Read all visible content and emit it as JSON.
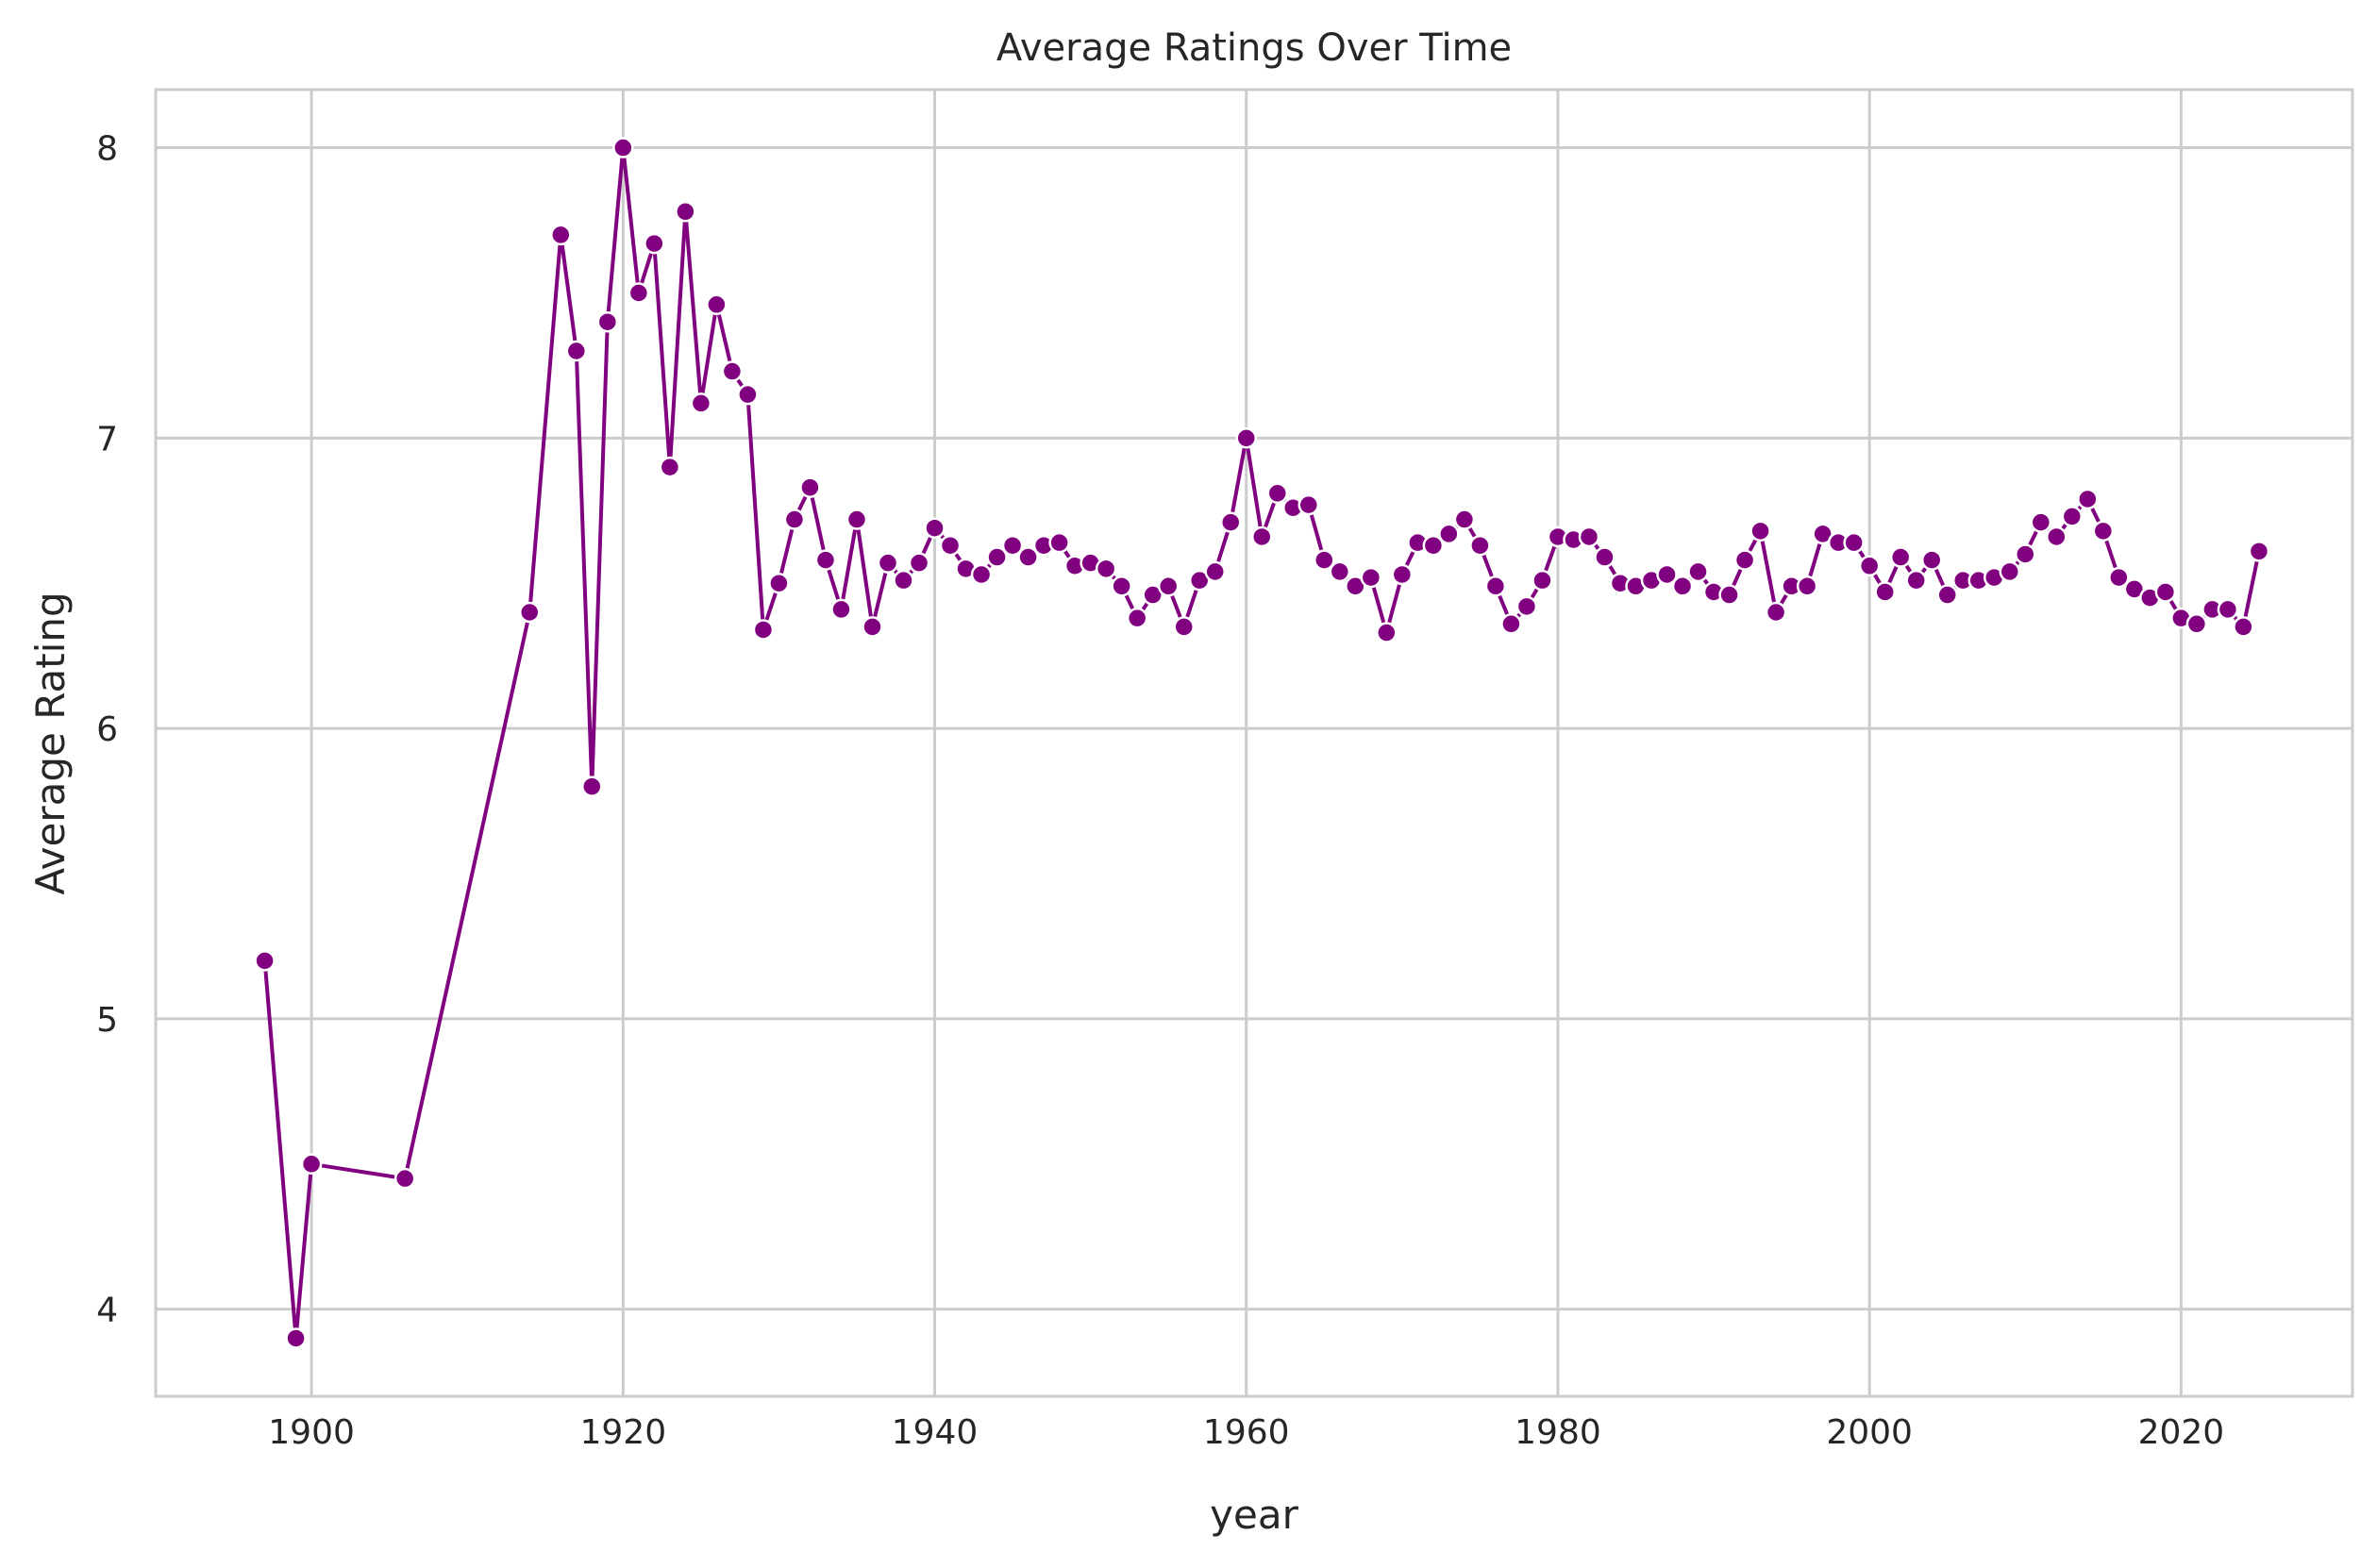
{
  "colors": {
    "series": "#800080",
    "grid": "#cccccc",
    "text": "#262626",
    "background": "#ffffff"
  },
  "chart_data": {
    "type": "line",
    "title": "Average Ratings Over Time",
    "xlabel": "year",
    "ylabel": "Average Rating",
    "xlim": [
      1890,
      2031
    ],
    "ylim": [
      3.7,
      8.2
    ],
    "x_ticks": [
      1900,
      1920,
      1940,
      1960,
      1980,
      2000,
      2020
    ],
    "y_ticks": [
      4,
      5,
      6,
      7,
      8
    ],
    "grid": true,
    "legend": "none",
    "marker": "circle",
    "series": [
      {
        "x": [
          1897,
          1899,
          1900,
          1906,
          1914,
          1916,
          1917,
          1918,
          1919,
          1920,
          1921,
          1922,
          1923,
          1924,
          1925,
          1926,
          1927,
          1928,
          1929,
          1930,
          1931,
          1932,
          1933,
          1934,
          1935,
          1936,
          1937,
          1938,
          1939,
          1940,
          1941,
          1942,
          1943,
          1944,
          1945,
          1946,
          1947,
          1948,
          1949,
          1950,
          1951,
          1952,
          1953,
          1954,
          1955,
          1956,
          1957,
          1958,
          1959,
          1960,
          1961,
          1962,
          1963,
          1964,
          1965,
          1966,
          1967,
          1968,
          1969,
          1970,
          1971,
          1972,
          1973,
          1974,
          1975,
          1976,
          1977,
          1978,
          1979,
          1980,
          1981,
          1982,
          1983,
          1984,
          1985,
          1986,
          1987,
          1988,
          1989,
          1990,
          1991,
          1992,
          1993,
          1994,
          1995,
          1996,
          1997,
          1998,
          1999,
          2000,
          2001,
          2002,
          2003,
          2004,
          2005,
          2006,
          2007,
          2008,
          2009,
          2010,
          2011,
          2012,
          2013,
          2014,
          2015,
          2016,
          2017,
          2018,
          2019,
          2020,
          2021,
          2022,
          2023,
          2024,
          2025
        ],
        "y": [
          5.2,
          3.9,
          4.5,
          4.45,
          6.4,
          7.7,
          7.3,
          5.8,
          7.4,
          8.0,
          7.5,
          7.67,
          6.9,
          7.78,
          7.12,
          7.46,
          7.23,
          7.15,
          6.34,
          6.5,
          6.72,
          6.83,
          6.58,
          6.41,
          6.72,
          6.35,
          6.57,
          6.51,
          6.57,
          6.69,
          6.63,
          6.55,
          6.53,
          6.59,
          6.63,
          6.59,
          6.63,
          6.64,
          6.56,
          6.57,
          6.55,
          6.49,
          6.38,
          6.46,
          6.49,
          6.35,
          6.51,
          6.54,
          6.71,
          7.0,
          6.66,
          6.81,
          6.76,
          6.77,
          6.58,
          6.54,
          6.49,
          6.52,
          6.33,
          6.53,
          6.64,
          6.63,
          6.67,
          6.72,
          6.63,
          6.49,
          6.36,
          6.42,
          6.51,
          6.66,
          6.65,
          6.66,
          6.59,
          6.5,
          6.49,
          6.51,
          6.53,
          6.49,
          6.54,
          6.47,
          6.46,
          6.58,
          6.68,
          6.4,
          6.49,
          6.49,
          6.67,
          6.64,
          6.64,
          6.56,
          6.47,
          6.59,
          6.51,
          6.58,
          6.46,
          6.51,
          6.51,
          6.52,
          6.54,
          6.6,
          6.71,
          6.66,
          6.73,
          6.79,
          6.68,
          6.52,
          6.48,
          6.45,
          6.47,
          6.38,
          6.36,
          6.41,
          6.41,
          6.35,
          6.61
        ]
      }
    ]
  }
}
